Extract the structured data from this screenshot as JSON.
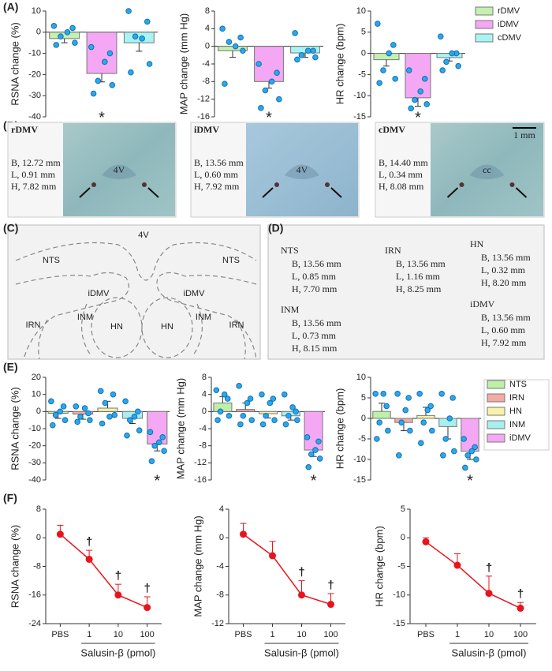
{
  "panel_labels": [
    "(A)",
    "(B)",
    "(C)",
    "(D)",
    "(E)",
    "(F)"
  ],
  "chart_data": [
    {
      "type": "bar",
      "ylabel": "RSNA change (%)",
      "ylim": [
        -40,
        10
      ],
      "yticks": [
        -40,
        -30,
        -20,
        -10,
        0,
        10
      ],
      "series": [
        {
          "color": "#c4f0b0",
          "values": [
            -3
          ],
          "errors": [
            2
          ],
          "points": [
            3,
            2,
            -2,
            -5,
            -6,
            0
          ]
        },
        {
          "color": "#f4a8f4",
          "values": [
            -19.5
          ],
          "errors": [
            4
          ],
          "points": [
            -7,
            -10,
            -23,
            -25,
            -29,
            -14
          ],
          "marker": "*"
        },
        {
          "color": "#a8f4f4",
          "values": [
            -5
          ],
          "errors": [
            4
          ],
          "points": [
            10,
            5,
            -2,
            -15,
            -19,
            -3
          ]
        }
      ]
    },
    {
      "type": "bar",
      "ylabel": "MAP change (mm Hg)",
      "ylim": [
        -16,
        8
      ],
      "yticks": [
        -16,
        -12,
        -8,
        -4,
        0,
        4,
        8
      ],
      "series": [
        {
          "color": "#c4f0b0",
          "values": [
            -1
          ],
          "errors": [
            1.5
          ],
          "points": [
            4,
            2,
            1,
            -1,
            -8.5,
            0
          ]
        },
        {
          "color": "#f4a8f4",
          "values": [
            -8
          ],
          "errors": [
            1.5
          ],
          "points": [
            -4,
            -6,
            -10,
            -12,
            -14,
            -8
          ],
          "marker": "*"
        },
        {
          "color": "#a8f4f4",
          "values": [
            -1.5
          ],
          "errors": [
            1
          ],
          "points": [
            3,
            -1,
            -2,
            -2.5,
            -3,
            -1
          ]
        }
      ]
    },
    {
      "type": "bar",
      "ylabel": "HR change (bpm)",
      "ylim": [
        -15,
        10
      ],
      "yticks": [
        -15,
        -10,
        -5,
        0,
        5,
        10
      ],
      "legend": "right",
      "series": [
        {
          "name": "rDMV",
          "color": "#c4f0b0",
          "values": [
            -1.5
          ],
          "errors": [
            1.5
          ],
          "points": [
            7,
            2,
            -4,
            -6,
            -7,
            0
          ]
        },
        {
          "name": "iDMV",
          "color": "#f4a8f4",
          "values": [
            -10.5
          ],
          "errors": [
            2
          ],
          "points": [
            -4,
            -6,
            -11,
            -12,
            -13,
            -9
          ],
          "marker": "*"
        },
        {
          "name": "cDMV",
          "color": "#a8f4f4",
          "values": [
            -1
          ],
          "errors": [
            0.8
          ],
          "points": [
            4,
            0,
            -2,
            -3,
            -4,
            0
          ]
        }
      ]
    },
    {
      "type": "bar",
      "ylabel": "RSNA change (%)",
      "ylim": [
        -40,
        20
      ],
      "yticks": [
        -40,
        -30,
        -20,
        -10,
        0,
        10,
        20
      ],
      "series": [
        {
          "color": "#bff0a8",
          "values": [
            -1
          ],
          "errors": [
            3
          ],
          "points": [
            6,
            3,
            -2,
            -5,
            -8,
            0
          ]
        },
        {
          "color": "#f4aaa4",
          "values": [
            -1.5
          ],
          "errors": [
            3
          ],
          "points": [
            3,
            -1,
            -3,
            -5,
            -6,
            2
          ]
        },
        {
          "color": "#f6f2a8",
          "values": [
            2
          ],
          "errors": [
            4
          ],
          "points": [
            12,
            10,
            5,
            -2,
            -7,
            -3
          ]
        },
        {
          "color": "#a8f0f0",
          "values": [
            -4
          ],
          "errors": [
            3
          ],
          "points": [
            6,
            0,
            -5,
            -11,
            -14,
            -3
          ]
        },
        {
          "color": "#f4a8f4",
          "values": [
            -19
          ],
          "errors": [
            4
          ],
          "points": [
            -12,
            -15,
            -20,
            -23,
            -29,
            -18
          ],
          "marker": "*"
        }
      ]
    },
    {
      "type": "bar",
      "ylabel": "MAP change (mm Hg)",
      "ylim": [
        -16,
        8
      ],
      "yticks": [
        -16,
        -12,
        -8,
        -4,
        0,
        4,
        8
      ],
      "series": [
        {
          "color": "#bff0a8",
          "values": [
            2
          ],
          "errors": [
            1.5
          ],
          "points": [
            5,
            3,
            0,
            -1,
            -2,
            4
          ]
        },
        {
          "color": "#f4aaa4",
          "values": [
            0.5
          ],
          "errors": [
            1.5
          ],
          "points": [
            6,
            3,
            -1,
            -2,
            -3,
            2
          ]
        },
        {
          "color": "#f6f2a8",
          "values": [
            -0.5
          ],
          "errors": [
            1
          ],
          "points": [
            4,
            3,
            -1,
            -2,
            -3,
            2
          ]
        },
        {
          "color": "#a8f0f0",
          "values": [
            -1
          ],
          "errors": [
            1
          ],
          "points": [
            4,
            0,
            -1,
            -2,
            -3,
            1
          ]
        },
        {
          "color": "#f4a8f4",
          "values": [
            -9
          ],
          "errors": [
            1.5
          ],
          "points": [
            -6,
            -7,
            -10,
            -11,
            -13,
            -9
          ],
          "marker": "*"
        }
      ]
    },
    {
      "type": "bar",
      "ylabel": "HR change (bpm)",
      "ylim": [
        -15,
        10
      ],
      "yticks": [
        -15,
        -10,
        -5,
        0,
        5,
        10
      ],
      "legend": "right",
      "series": [
        {
          "name": "NTS",
          "color": "#bff0a8",
          "values": [
            1.7
          ],
          "errors": [
            2
          ],
          "points": [
            6,
            3,
            -1,
            -3,
            -5,
            6
          ]
        },
        {
          "name": "IRN",
          "color": "#f4aaa4",
          "values": [
            -1
          ],
          "errors": [
            2
          ],
          "points": [
            6,
            5,
            -1,
            -3,
            -9,
            2
          ]
        },
        {
          "name": "HN",
          "color": "#f6f2a8",
          "values": [
            0.7
          ],
          "errors": [
            2
          ],
          "points": [
            6,
            3,
            -1,
            -3,
            -6,
            2
          ]
        },
        {
          "name": "INM",
          "color": "#a8f0f0",
          "values": [
            -2
          ],
          "errors": [
            3
          ],
          "points": [
            6,
            5,
            -5,
            -8,
            -9,
            0
          ]
        },
        {
          "name": "iDMV",
          "color": "#f4a8f4",
          "values": [
            -8
          ],
          "errors": [
            2
          ],
          "points": [
            -5,
            -7,
            -9,
            -10,
            -12,
            -8
          ],
          "marker": "*"
        }
      ]
    },
    {
      "type": "line",
      "ylabel": "RSNA change (%)",
      "xlabel": "Salusin-β (pmol)",
      "color": "#e8141c",
      "ylim": [
        -24,
        8
      ],
      "yticks": [
        -24,
        -16,
        -8,
        0,
        8
      ],
      "categories": [
        "PBS",
        "1",
        "10",
        "100"
      ],
      "values": [
        1,
        -6,
        -16,
        -19.5
      ],
      "errors": [
        2.5,
        2.5,
        3,
        3
      ],
      "markers": [
        null,
        "†",
        "†",
        "†"
      ]
    },
    {
      "type": "line",
      "ylabel": "MAP change (mm Hg)",
      "xlabel": "Salusin-β (pmol)",
      "color": "#e8141c",
      "ylim": [
        -12,
        4
      ],
      "yticks": [
        -12,
        -8,
        -4,
        0,
        4
      ],
      "categories": [
        "PBS",
        "1",
        "10",
        "100"
      ],
      "values": [
        0.5,
        -2.5,
        -8,
        -9.3
      ],
      "errors": [
        1.5,
        2,
        2,
        1.5
      ],
      "markers": [
        null,
        null,
        "†",
        "†"
      ]
    },
    {
      "type": "line",
      "ylabel": "HR change (bpm)",
      "xlabel": "Salusin-β (pmol)",
      "color": "#e8141c",
      "ylim": [
        -15,
        5
      ],
      "yticks": [
        -15,
        -10,
        -5,
        0,
        5
      ],
      "categories": [
        "PBS",
        "1",
        "10",
        "100"
      ],
      "values": [
        -0.7,
        -4.8,
        -9.7,
        -12.3
      ],
      "errors": [
        0.7,
        2,
        3,
        1
      ],
      "markers": [
        null,
        null,
        "†",
        "†"
      ]
    }
  ],
  "sections": {
    "images": [
      {
        "name": "rDMV",
        "coords": [
          "B, 12.72 mm",
          "L, 0.91 mm",
          "H, 7.82 mm"
        ],
        "label": "4V"
      },
      {
        "name": "iDMV",
        "coords": [
          "B, 13.56 mm",
          "L, 0.60 mm",
          "H, 7.92 mm"
        ],
        "label": "4V"
      },
      {
        "name": "cDMV",
        "coords": [
          "B, 14.40 mm",
          "L, 0.34 mm",
          "H, 8.08 mm"
        ],
        "label": "cc",
        "scale": "1 mm"
      }
    ],
    "diagram": {
      "labels": [
        "4V",
        "NTS",
        "NTS",
        "iDMV",
        "iDMV",
        "IRN",
        "INM",
        "HN",
        "HN",
        "INM",
        "IRN"
      ]
    },
    "coordinates": [
      {
        "name": "NTS",
        "lines": [
          "B, 13.56 mm",
          "L, 0.85 mm",
          "H, 7.70 mm"
        ]
      },
      {
        "name": "IRN",
        "lines": [
          "B, 13.56 mm",
          "L, 1.16 mm",
          "H, 8.25 mm"
        ]
      },
      {
        "name": "HN",
        "lines": [
          "B, 13.56 mm",
          "L, 0.32 mm",
          "H, 8.20 mm"
        ]
      },
      {
        "name": "INM",
        "lines": [
          "B, 13.56 mm",
          "L, 0.73 mm",
          "H, 8.15 mm"
        ]
      },
      {
        "name": "iDMV",
        "lines": [
          "B, 13.56 mm",
          "L, 0.60 mm",
          "H, 7.92 mm"
        ]
      }
    ]
  }
}
